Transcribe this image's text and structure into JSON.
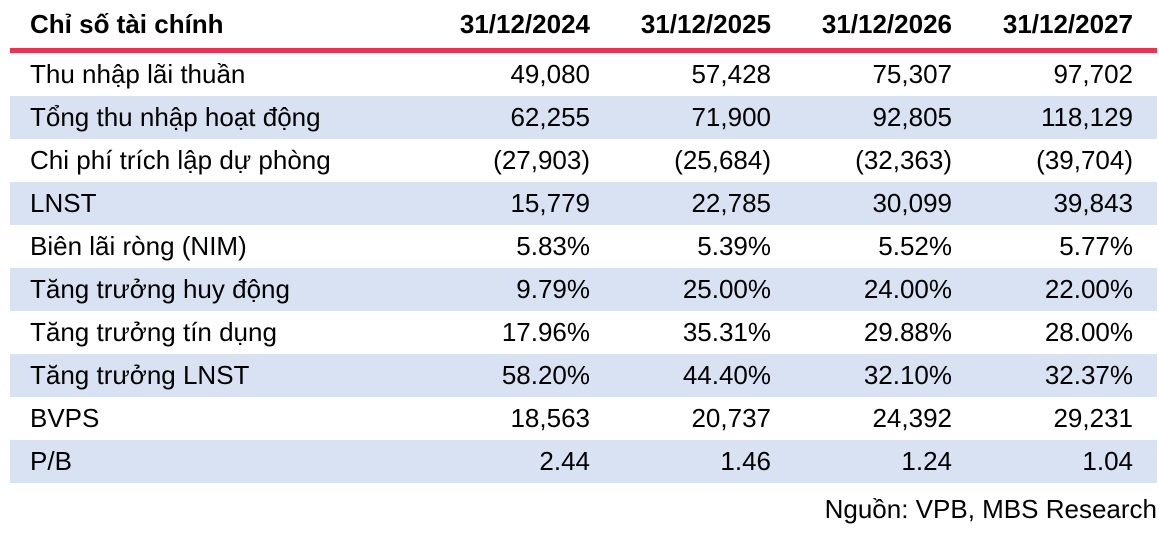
{
  "chart_data": {
    "type": "table",
    "title": "Chỉ số tài chính",
    "columns": [
      "Chỉ số tài chính",
      "31/12/2024",
      "31/12/2025",
      "31/12/2026",
      "31/12/2027"
    ],
    "rows": [
      {
        "label": "Thu nhập lãi thuần",
        "values": [
          "49,080",
          "57,428",
          "75,307",
          "97,702"
        ],
        "highlight": false
      },
      {
        "label": "Tổng thu nhập hoạt động",
        "values": [
          "62,255",
          "71,900",
          "92,805",
          "118,129"
        ],
        "highlight": true
      },
      {
        "label": "Chi phí trích lập dự phòng",
        "values": [
          "(27,903)",
          "(25,684)",
          "(32,363)",
          "(39,704)"
        ],
        "highlight": false
      },
      {
        "label": "LNST",
        "values": [
          "15,779",
          "22,785",
          "30,099",
          "39,843"
        ],
        "highlight": true
      },
      {
        "label": "Biên lãi ròng (NIM)",
        "values": [
          "5.83%",
          "5.39%",
          "5.52%",
          "5.77%"
        ],
        "highlight": false
      },
      {
        "label": "Tăng trưởng huy động",
        "values": [
          "9.79%",
          "25.00%",
          "24.00%",
          "22.00%"
        ],
        "highlight": true
      },
      {
        "label": "Tăng trưởng tín dụng",
        "values": [
          "17.96%",
          "35.31%",
          "29.88%",
          "28.00%"
        ],
        "highlight": false
      },
      {
        "label": "Tăng trưởng LNST",
        "values": [
          "58.20%",
          "44.40%",
          "32.10%",
          "32.37%"
        ],
        "highlight": true
      },
      {
        "label": "BVPS",
        "values": [
          "18,563",
          "20,737",
          "24,392",
          "29,231"
        ],
        "highlight": false
      },
      {
        "label": "P/B",
        "values": [
          "2.44",
          "1.46",
          "1.24",
          "1.04"
        ],
        "highlight": true
      }
    ],
    "source": "Nguồn: VPB, MBS Research",
    "layout": {
      "value_alignment": "right",
      "grid": "off",
      "zebra_highlight_rows": [
        1,
        3,
        5,
        7,
        9
      ]
    }
  },
  "colors": {
    "header_rule": "#EA3352",
    "row_highlight": "#D9E2F3",
    "text": "#000000",
    "background": "#FFFFFF"
  }
}
